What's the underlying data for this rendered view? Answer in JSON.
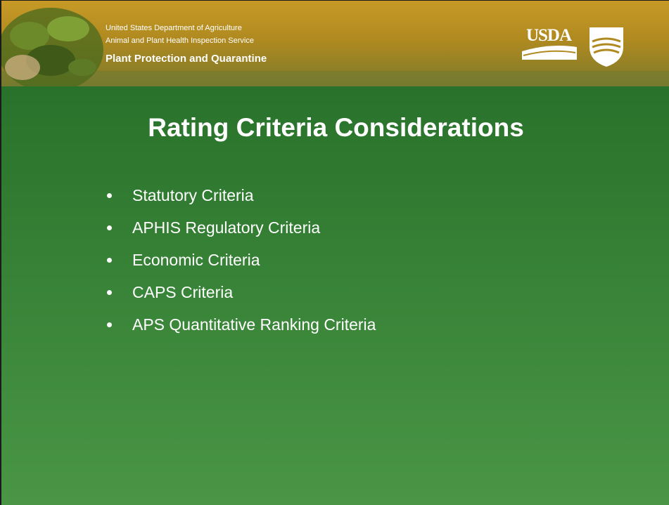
{
  "header": {
    "agency": "United States Department of Agriculture",
    "service": "Animal and Plant Health Inspection Service",
    "program": "Plant Protection and Quarantine",
    "logo_text": "USDA"
  },
  "title": "Rating Criteria Considerations",
  "bullets": [
    "Statutory Criteria",
    "APHIS Regulatory Criteria",
    "Economic Criteria",
    "CAPS Criteria",
    "APS Quantitative Ranking Criteria"
  ]
}
